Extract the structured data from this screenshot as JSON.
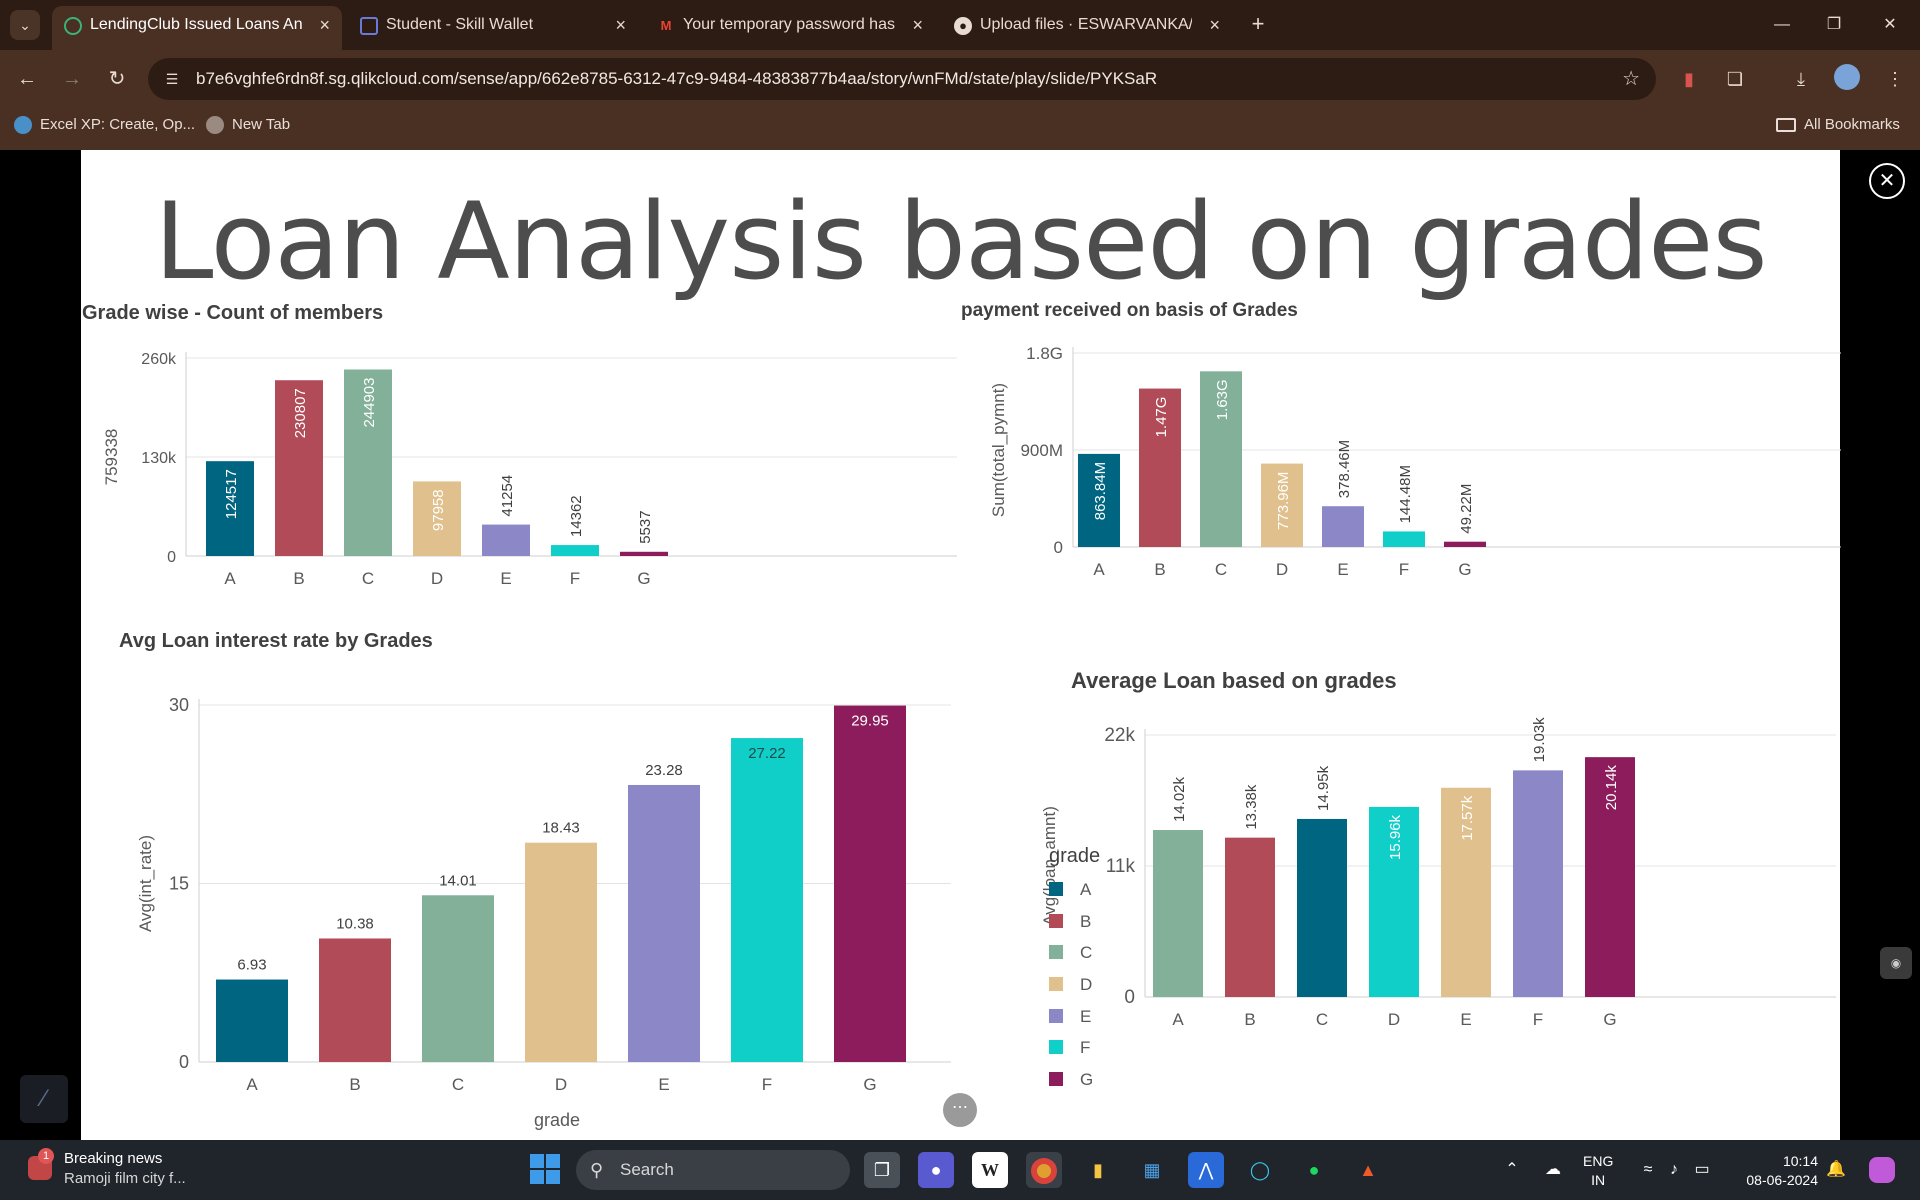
{
  "browser": {
    "tabs": [
      {
        "title": "LendingClub Issued Loans Analy",
        "active": true
      },
      {
        "title": "Student - Skill Wallet",
        "active": false
      },
      {
        "title": "Your temporary password has b",
        "active": false
      },
      {
        "title": "Upload files · ESWARVANKA/QL",
        "active": false
      }
    ],
    "url": "b7e6vghfe6rdn8f.sg.qlikcloud.com/sense/app/662e8785-6312-47c9-9484-48383877b4aa/story/wnFMd/state/play/slide/PYKSaR",
    "bookmarks": [
      "Excel XP: Create, Op...",
      "New Tab"
    ],
    "all_bookmarks": "All Bookmarks"
  },
  "slide": {
    "title": "Loan Analysis based on grades"
  },
  "colors": {
    "A": "#006580",
    "B": "#b04b57",
    "C": "#82b098",
    "D": "#e0c08c",
    "E": "#8c88c8",
    "F": "#10cfc9",
    "G": "#8c1c5c",
    "grid": "#e4e4e4",
    "axis": "#cfcfcf"
  },
  "chart_data": [
    {
      "id": "count",
      "type": "bar",
      "title": "Grade wise - Count of members",
      "categories": [
        "A",
        "B",
        "C",
        "D",
        "E",
        "F",
        "G"
      ],
      "values": [
        124517,
        230807,
        244903,
        97958,
        41254,
        14362,
        5537
      ],
      "value_labels": [
        "124517",
        "230807",
        "244903",
        "97958",
        "41254",
        "14362",
        "5537"
      ],
      "bar_colors": [
        "A",
        "B",
        "C",
        "D",
        "E",
        "F",
        "G"
      ],
      "ylabel": "759338",
      "xlabel": "",
      "yticks": [
        "0",
        "130k",
        "260k"
      ],
      "ylim": [
        0,
        260000
      ]
    },
    {
      "id": "payment",
      "type": "bar",
      "title": "payment received on basis of Grades",
      "categories": [
        "A",
        "B",
        "C",
        "D",
        "E",
        "F",
        "G"
      ],
      "values": [
        863840000,
        1470000000,
        1630000000,
        773960000,
        378460000,
        144480000,
        49220000
      ],
      "value_labels": [
        "863.84M",
        "1.47G",
        "1.63G",
        "773.96M",
        "378.46M",
        "144.48M",
        "49.22M"
      ],
      "bar_colors": [
        "A",
        "B",
        "C",
        "D",
        "E",
        "F",
        "G"
      ],
      "ylabel": "Sum(total_pymnt)",
      "xlabel": "",
      "yticks": [
        "0",
        "900M",
        "1.8G"
      ],
      "ylim": [
        0,
        1800000000
      ]
    },
    {
      "id": "interest",
      "type": "bar",
      "title": "Avg Loan interest rate by Grades",
      "categories": [
        "A",
        "B",
        "C",
        "D",
        "E",
        "F",
        "G"
      ],
      "values": [
        6.93,
        10.38,
        14.01,
        18.43,
        23.28,
        27.22,
        29.95
      ],
      "value_labels": [
        "6.93",
        "10.38",
        "14.01",
        "18.43",
        "23.28",
        "27.22",
        "29.95"
      ],
      "bar_colors": [
        "A",
        "B",
        "C",
        "D",
        "E",
        "F",
        "G"
      ],
      "ylabel": "Avg(int_rate)",
      "xlabel": "grade",
      "yticks": [
        "0",
        "15",
        "30"
      ],
      "ylim": [
        0,
        30
      ],
      "legend": {
        "title": "grade",
        "items": [
          "A",
          "B",
          "C",
          "D",
          "E",
          "F",
          "G"
        ],
        "position": "right"
      }
    },
    {
      "id": "avgloan",
      "type": "bar",
      "title": "Average Loan based on grades",
      "categories": [
        "A",
        "B",
        "C",
        "D",
        "E",
        "F",
        "G"
      ],
      "values": [
        14020,
        13380,
        14950,
        15960,
        17570,
        19030,
        20140
      ],
      "value_labels": [
        "14.02k",
        "13.38k",
        "14.95k",
        "15.96k",
        "17.57k",
        "19.03k",
        "20.14k"
      ],
      "bar_colors": [
        "C",
        "B",
        "A",
        "F",
        "D",
        "E",
        "G"
      ],
      "ylabel": "Avg(loan_amnt)",
      "xlabel": "",
      "yticks": [
        "0",
        "11k",
        "22k"
      ],
      "ylim": [
        0,
        22000
      ]
    }
  ],
  "taskbar": {
    "news_title": "Breaking news",
    "news_sub": "Ramoji film city f...",
    "news_badge": "1",
    "search": "Search",
    "lang1": "ENG",
    "lang2": "IN",
    "time": "10:14",
    "date": "08-06-2024"
  }
}
